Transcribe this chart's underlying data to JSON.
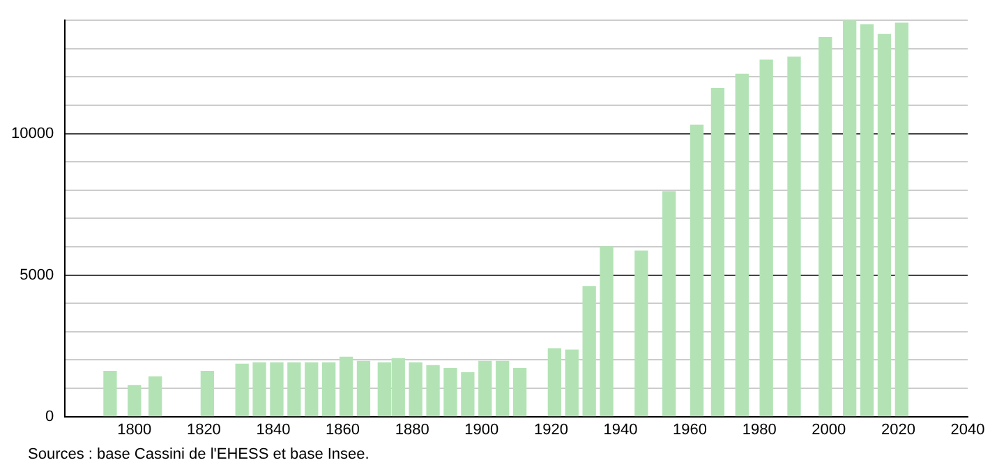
{
  "chart_data": {
    "type": "bar",
    "x": [
      1793,
      1800,
      1806,
      1821,
      1831,
      1836,
      1841,
      1846,
      1851,
      1856,
      1861,
      1866,
      1872,
      1876,
      1881,
      1886,
      1891,
      1896,
      1901,
      1906,
      1911,
      1921,
      1926,
      1931,
      1936,
      1946,
      1954,
      1962,
      1968,
      1975,
      1982,
      1990,
      1999,
      2006,
      2011,
      2016,
      2021
    ],
    "values": [
      1600,
      1100,
      1400,
      1600,
      1850,
      1900,
      1900,
      1900,
      1900,
      1900,
      2100,
      1950,
      1900,
      2050,
      1900,
      1800,
      1700,
      1550,
      1950,
      1950,
      1700,
      2400,
      2350,
      4600,
      6000,
      5850,
      7950,
      10300,
      11600,
      12100,
      12600,
      12700,
      13400,
      14000,
      13850,
      13500,
      13900
    ],
    "color": "#b3e3b5",
    "xlim": [
      1780,
      2040
    ],
    "xticks": [
      1800,
      1820,
      1840,
      1860,
      1880,
      1900,
      1920,
      1940,
      1960,
      1980,
      2000,
      2020,
      2040
    ],
    "ylim": [
      0,
      14000
    ],
    "yticks": [
      0,
      {
        "value": 1000,
        "label": null
      },
      {
        "value": 2000,
        "label": null
      },
      {
        "value": 3000,
        "label": null
      },
      {
        "value": 4000,
        "label": null
      },
      5000,
      {
        "value": 6000,
        "label": null
      },
      {
        "value": 7000,
        "label": null
      },
      {
        "value": 8000,
        "label": null
      },
      {
        "value": 9000,
        "label": null
      },
      10000,
      {
        "value": 11000,
        "label": null
      },
      {
        "value": 12000,
        "label": null
      },
      {
        "value": 13000,
        "label": null
      },
      {
        "value": 14000,
        "label": null
      }
    ],
    "grid": "y",
    "annotations": [
      "Sources : base Cassini de l'EHESS et base Insee."
    ]
  }
}
